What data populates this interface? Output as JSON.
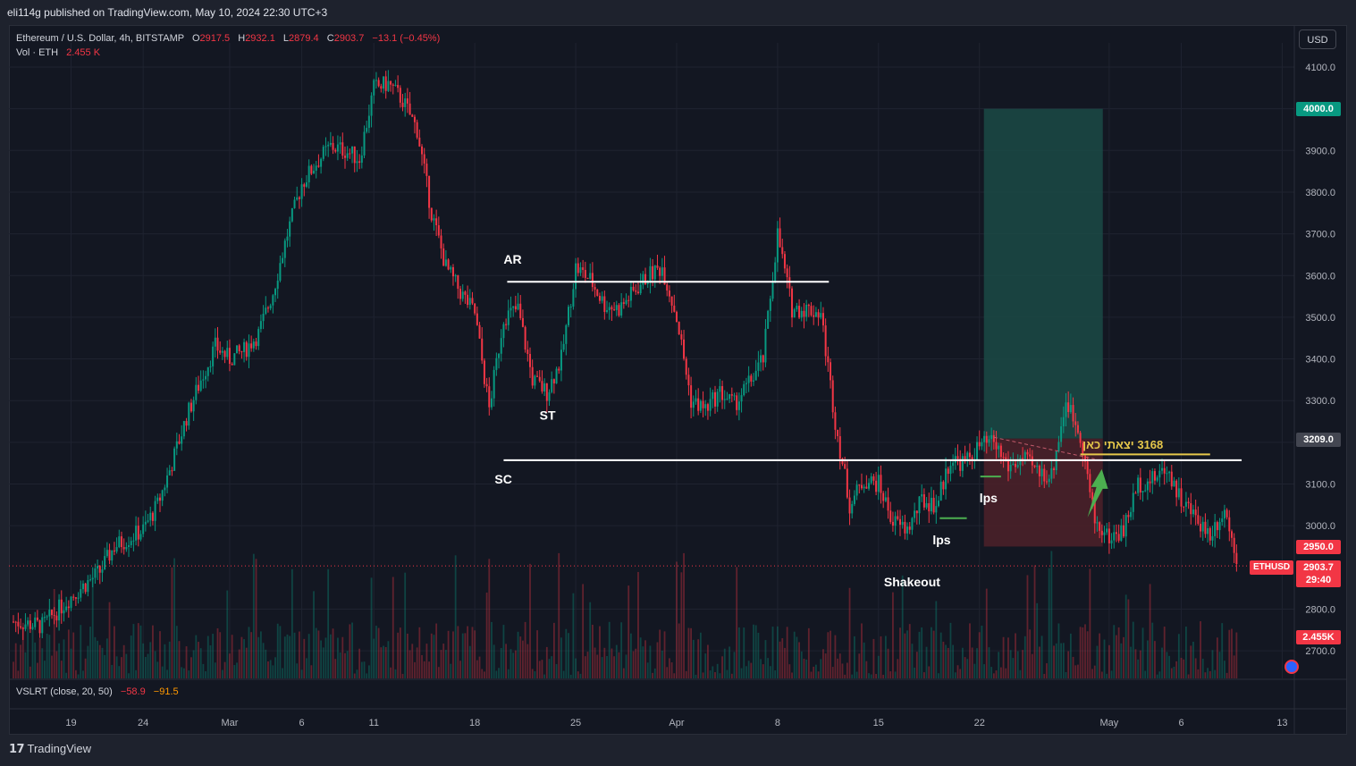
{
  "publisher_line": "eli114g published on TradingView.com, May 10, 2024 22:30 UTC+3",
  "legend": {
    "symbol": "Ethereum / U.S. Dollar, 4h, BITSTAMP",
    "open_label": "O",
    "open": "2917.5",
    "high_label": "H",
    "high": "2932.1",
    "low_label": "L",
    "low": "2879.4",
    "close_label": "C",
    "close": "2903.7",
    "change": "−13.1 (−0.45%)",
    "vol_label": "Vol · ETH",
    "vol_value": "2.455 K"
  },
  "indicator": {
    "name": "VSLRT (close, 20, 50)",
    "value1": "−58.9",
    "value2": "−91.5"
  },
  "currency_button": "USD",
  "price_tags": {
    "target": "4000.0",
    "entry": "3209.0",
    "stop": "2950.0",
    "symbol": "ETHUSD",
    "last": "2903.7",
    "countdown": "29:40",
    "volume": "2.455K"
  },
  "footer_brand": "TradingView",
  "colors": {
    "bull": "#089981",
    "bear": "#f23645",
    "background": "#131722",
    "target_zone": "#1b4a45",
    "stop_zone": "#4a2029",
    "annotation": "#e6c84a",
    "arrow": "#4caf50"
  },
  "chart_data": {
    "type": "candlestick",
    "symbol": "ETHUSD",
    "timeframe": "4h",
    "y_ticks": [
      4100.0,
      4000.0,
      3900.0,
      3800.0,
      3700.0,
      3600.0,
      3500.0,
      3400.0,
      3300.0,
      3200.0,
      3100.0,
      3000.0,
      2800.0,
      2700.0
    ],
    "ylim": [
      2660,
      4175
    ],
    "x_ticks": [
      "19",
      "24",
      "Mar",
      "6",
      "11",
      "18",
      "25",
      "Apr",
      "8",
      "15",
      "22",
      "May",
      "6",
      "13"
    ],
    "close_path": [
      {
        "date": "2024-02-15",
        "close": 2770
      },
      {
        "date": "2024-02-17",
        "close": 2760
      },
      {
        "date": "2024-02-19",
        "close": 2830
      },
      {
        "date": "2024-02-21",
        "close": 2890
      },
      {
        "date": "2024-02-22",
        "close": 2950
      },
      {
        "date": "2024-02-24",
        "close": 2990
      },
      {
        "date": "2024-02-25",
        "close": 3050
      },
      {
        "date": "2024-02-26",
        "close": 3150
      },
      {
        "date": "2024-02-27",
        "close": 3260
      },
      {
        "date": "2024-02-28",
        "close": 3350
      },
      {
        "date": "2024-02-29",
        "close": 3430
      },
      {
        "date": "2024-03-01",
        "close": 3400
      },
      {
        "date": "2024-03-02",
        "close": 3420
      },
      {
        "date": "2024-03-03",
        "close": 3460
      },
      {
        "date": "2024-03-04",
        "close": 3560
      },
      {
        "date": "2024-03-05",
        "close": 3700
      },
      {
        "date": "2024-03-06",
        "close": 3820
      },
      {
        "date": "2024-03-07",
        "close": 3870
      },
      {
        "date": "2024-03-08",
        "close": 3910
      },
      {
        "date": "2024-03-09",
        "close": 3900
      },
      {
        "date": "2024-03-10",
        "close": 3880
      },
      {
        "date": "2024-03-11",
        "close": 4050
      },
      {
        "date": "2024-03-12",
        "close": 4060
      },
      {
        "date": "2024-03-13",
        "close": 4020
      },
      {
        "date": "2024-03-14",
        "close": 3950
      },
      {
        "date": "2024-03-15",
        "close": 3750
      },
      {
        "date": "2024-03-16",
        "close": 3620
      },
      {
        "date": "2024-03-17",
        "close": 3560
      },
      {
        "date": "2024-03-18",
        "close": 3510
      },
      {
        "date": "2024-03-19",
        "close": 3280
      },
      {
        "date": "2024-03-20",
        "close": 3500
      },
      {
        "date": "2024-03-21",
        "close": 3520
      },
      {
        "date": "2024-03-22",
        "close": 3350
      },
      {
        "date": "2024-03-23",
        "close": 3320
      },
      {
        "date": "2024-03-24",
        "close": 3400
      },
      {
        "date": "2024-03-25",
        "close": 3620
      },
      {
        "date": "2024-03-26",
        "close": 3590
      },
      {
        "date": "2024-03-27",
        "close": 3530
      },
      {
        "date": "2024-03-28",
        "close": 3520
      },
      {
        "date": "2024-03-29",
        "close": 3560
      },
      {
        "date": "2024-03-30",
        "close": 3600
      },
      {
        "date": "2024-03-31",
        "close": 3620
      },
      {
        "date": "2024-04-01",
        "close": 3500
      },
      {
        "date": "2024-04-02",
        "close": 3300
      },
      {
        "date": "2024-04-03",
        "close": 3280
      },
      {
        "date": "2024-04-04",
        "close": 3320
      },
      {
        "date": "2024-04-05",
        "close": 3290
      },
      {
        "date": "2024-04-06",
        "close": 3340
      },
      {
        "date": "2024-04-07",
        "close": 3400
      },
      {
        "date": "2024-04-08",
        "close": 3700
      },
      {
        "date": "2024-04-09",
        "close": 3520
      },
      {
        "date": "2024-04-10",
        "close": 3520
      },
      {
        "date": "2024-04-11",
        "close": 3510
      },
      {
        "date": "2024-04-12",
        "close": 3250
      },
      {
        "date": "2024-04-13",
        "close": 3050
      },
      {
        "date": "2024-04-14",
        "close": 3110
      },
      {
        "date": "2024-04-15",
        "close": 3100
      },
      {
        "date": "2024-04-16",
        "close": 3010
      },
      {
        "date": "2024-04-17",
        "close": 2990
      },
      {
        "date": "2024-04-18",
        "close": 3060
      },
      {
        "date": "2024-04-19",
        "close": 3050
      },
      {
        "date": "2024-04-20",
        "close": 3160
      },
      {
        "date": "2024-04-21",
        "close": 3150
      },
      {
        "date": "2024-04-22",
        "close": 3190
      },
      {
        "date": "2024-04-23",
        "close": 3200
      },
      {
        "date": "2024-04-24",
        "close": 3140
      },
      {
        "date": "2024-04-25",
        "close": 3160
      },
      {
        "date": "2024-04-26",
        "close": 3130
      },
      {
        "date": "2024-04-27",
        "close": 3120
      },
      {
        "date": "2024-04-28",
        "close": 3300
      },
      {
        "date": "2024-04-29",
        "close": 3220
      },
      {
        "date": "2024-04-30",
        "close": 3010
      },
      {
        "date": "2024-05-01",
        "close": 2970
      },
      {
        "date": "2024-05-02",
        "close": 2990
      },
      {
        "date": "2024-05-03",
        "close": 3100
      },
      {
        "date": "2024-05-04",
        "close": 3110
      },
      {
        "date": "2024-05-05",
        "close": 3140
      },
      {
        "date": "2024-05-06",
        "close": 3060
      },
      {
        "date": "2024-05-07",
        "close": 3020
      },
      {
        "date": "2024-05-08",
        "close": 2980
      },
      {
        "date": "2024-05-09",
        "close": 3040
      },
      {
        "date": "2024-05-10",
        "close": 2903.7
      }
    ],
    "levels": [
      {
        "label": "AR",
        "price": 3585
      },
      {
        "label": "SC",
        "price": 3157
      },
      {
        "label": "3168 יצאתי כאן",
        "price": 3168
      }
    ],
    "annotations": [
      {
        "text": "AR",
        "date": "2024-03-20",
        "price": 3590
      },
      {
        "text": "ST",
        "date": "2024-03-22",
        "price": 3265
      },
      {
        "text": "SC",
        "date": "2024-03-20",
        "price": 3140
      },
      {
        "text": "Shakeout",
        "date": "2024-04-16",
        "price": 2865
      },
      {
        "text": "lps",
        "date": "2024-04-19",
        "price": 2985
      },
      {
        "text": "lps",
        "date": "2024-04-22",
        "price": 3090
      },
      {
        "text": "3168 יצאתי כאן",
        "date": "2024-05-04",
        "price": 3180
      }
    ],
    "position": {
      "entry": 3209.0,
      "target": 4000.0,
      "stop": 2950.0,
      "start": "2024-04-22",
      "end": "2024-04-30"
    },
    "last_price": 2903.7,
    "indicator_values": {
      "vslrt_fast": -58.9,
      "vslrt_slow": -91.5
    }
  }
}
